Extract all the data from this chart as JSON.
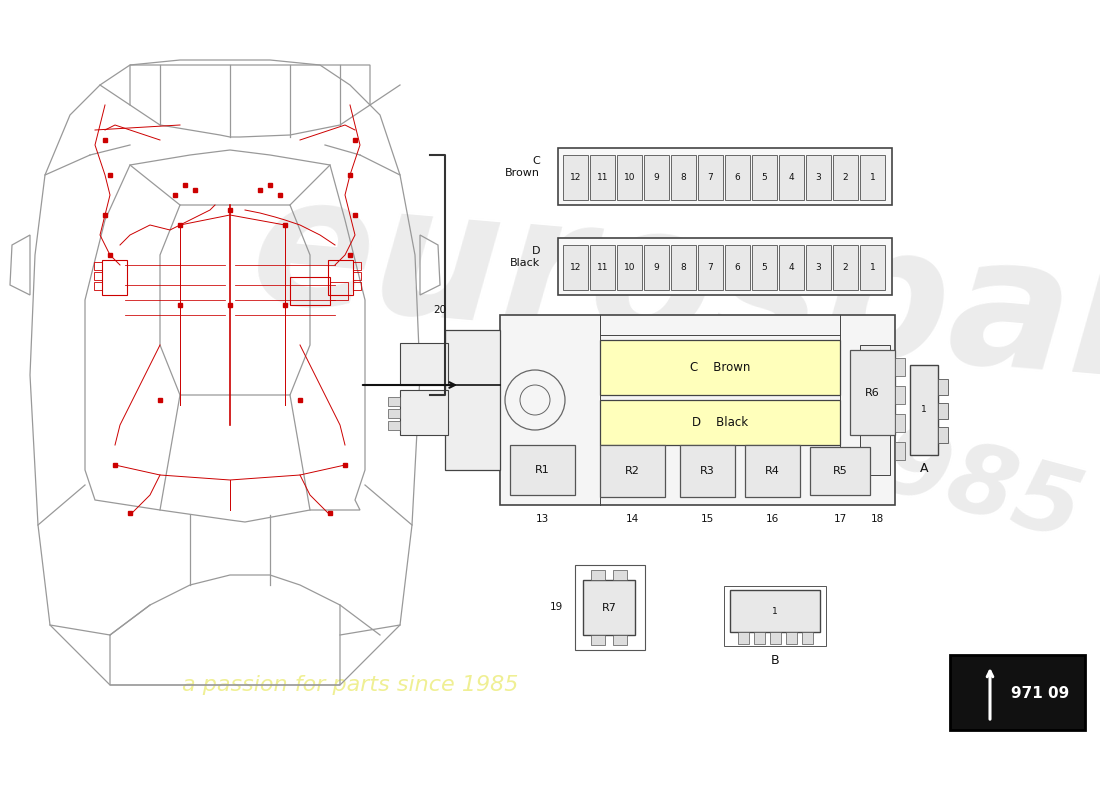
{
  "bg_color": "#ffffff",
  "car_color": "#999999",
  "car_lw": 0.9,
  "wiring_color": "#cc0000",
  "wire_lw": 0.7,
  "diagram_color": "#444444",
  "fuse_fill": "#e8e8e8",
  "fuse_border": "#555555",
  "box_fill": "#f5f5f5",
  "box_border": "#444444",
  "yellow_fill": "#ffffbb",
  "relay_fill": "#e8e8e8",
  "black_fill": "#111111",
  "white_text": "#ffffff",
  "dark_text": "#111111",
  "watermark_color": "#eeee88",
  "watermark_text": "a passion for parts since 1985",
  "part_number": "971 09",
  "fuse_numbers": [
    12,
    11,
    10,
    9,
    8,
    7,
    6,
    5,
    4,
    3,
    2,
    1
  ]
}
